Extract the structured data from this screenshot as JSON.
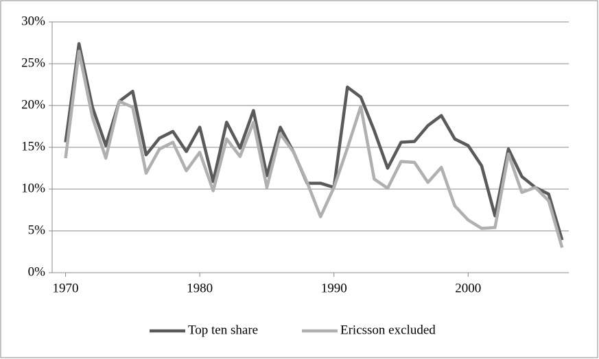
{
  "chart_data": {
    "type": "line",
    "x": [
      1970,
      1971,
      1972,
      1973,
      1974,
      1975,
      1976,
      1977,
      1978,
      1979,
      1980,
      1981,
      1982,
      1983,
      1984,
      1985,
      1986,
      1987,
      1988,
      1989,
      1990,
      1991,
      1992,
      1993,
      1994,
      1995,
      1996,
      1997,
      1998,
      1999,
      2000,
      2001,
      2002,
      2003,
      2004,
      2005,
      2006,
      2007
    ],
    "series": [
      {
        "name": "Top ten share",
        "color": "#5a5a5a",
        "values": [
          15.6,
          27.4,
          19.8,
          15.2,
          20.5,
          21.7,
          14.1,
          16.1,
          16.9,
          14.5,
          17.4,
          10.9,
          18.0,
          14.9,
          19.4,
          11.6,
          17.4,
          14.4,
          10.7,
          10.7,
          10.2,
          22.2,
          21.0,
          17.0,
          12.5,
          15.6,
          15.7,
          17.6,
          18.8,
          16.0,
          15.2,
          12.8,
          6.8,
          14.8,
          11.5,
          10.2,
          9.4,
          3.9
        ]
      },
      {
        "name": "Ericsson excluded",
        "color": "#b0b0b0",
        "values": [
          13.7,
          26.5,
          18.6,
          13.7,
          20.5,
          19.8,
          11.9,
          14.8,
          15.6,
          12.2,
          14.4,
          9.8,
          16.0,
          13.9,
          18.0,
          10.2,
          16.6,
          14.4,
          10.8,
          6.7,
          10.2,
          14.9,
          19.9,
          11.2,
          10.1,
          13.3,
          13.2,
          10.8,
          12.6,
          8.0,
          6.3,
          5.3,
          5.4,
          14.2,
          9.6,
          10.2,
          8.6,
          3.0
        ]
      }
    ],
    "xlim": [
      1969,
      2007.5
    ],
    "xticks": [
      1970,
      1980,
      1990,
      2000
    ],
    "ylim": [
      0,
      30
    ],
    "yticks": [
      {
        "value": 0,
        "label": "0%"
      },
      {
        "value": 5,
        "label": "5%"
      },
      {
        "value": 10,
        "label": "10%"
      },
      {
        "value": 15,
        "label": "15%"
      },
      {
        "value": 20,
        "label": "20%"
      },
      {
        "value": 25,
        "label": "25%"
      },
      {
        "value": 30,
        "label": "30%"
      }
    ],
    "grid": true,
    "legend": "bottom"
  }
}
